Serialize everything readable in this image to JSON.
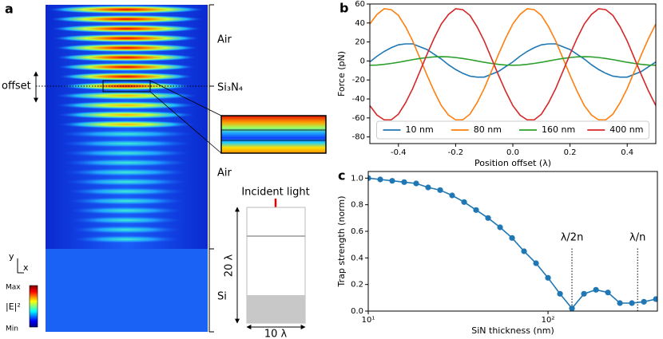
{
  "panel_a": {
    "label": "a",
    "layers": [
      "Air",
      "Si₃N₄",
      "Air",
      "Si"
    ],
    "offset_label": "offset",
    "axis_y": "y",
    "axis_x": "x",
    "colorbar": {
      "max": "Max",
      "label": "|E|²",
      "min": "Min"
    },
    "schematic": {
      "title": "Incident light",
      "height": "20 λ",
      "width": "10 λ"
    }
  },
  "chart_data": [
    {
      "type": "line",
      "panel_label": "b",
      "x": [
        -0.5,
        -0.475,
        -0.45,
        -0.425,
        -0.4,
        -0.375,
        -0.35,
        -0.325,
        -0.3,
        -0.275,
        -0.25,
        -0.225,
        -0.2,
        -0.175,
        -0.15,
        -0.125,
        -0.1,
        -0.075,
        -0.05,
        -0.025,
        0,
        0.025,
        0.05,
        0.075,
        0.1,
        0.125,
        0.15,
        0.175,
        0.2,
        0.225,
        0.25,
        0.275,
        0.3,
        0.325,
        0.35,
        0.375,
        0.4,
        0.425,
        0.45,
        0.475,
        0.5
      ],
      "series": [
        {
          "name": "10 nm",
          "color": "#1f77b4",
          "values": [
            -1,
            5,
            10,
            14,
            17,
            18,
            18,
            15,
            12,
            7,
            2,
            -4,
            -9,
            -13,
            -16,
            -17,
            -17,
            -14,
            -11,
            -6,
            -1,
            5,
            10,
            14,
            17,
            18,
            18,
            15,
            12,
            7,
            2,
            -4,
            -9,
            -13,
            -16,
            -17,
            -17,
            -14,
            -11,
            -6,
            -1
          ]
        },
        {
          "name": "80 nm",
          "color": "#ff7f0e",
          "values": [
            39,
            49,
            55,
            54,
            48,
            36,
            21,
            3,
            -15,
            -32,
            -47,
            -57,
            -62,
            -62,
            -56,
            -44,
            -29,
            -11,
            7,
            24,
            39,
            49,
            55,
            54,
            48,
            36,
            21,
            3,
            -15,
            -32,
            -47,
            -57,
            -62,
            -62,
            -56,
            -44,
            -29,
            -11,
            7,
            24,
            39
          ]
        },
        {
          "name": "160 nm",
          "color": "#2ca02c",
          "values": [
            -4.5,
            -4.3,
            -3.6,
            -2.6,
            -1.4,
            0,
            1.4,
            2.6,
            3.6,
            4.3,
            4.5,
            4.3,
            3.6,
            2.6,
            1.4,
            0,
            -1.4,
            -2.6,
            -3.6,
            -4.3,
            -4.5,
            -4.3,
            -3.6,
            -2.6,
            -1.4,
            0,
            1.4,
            2.6,
            3.6,
            4.3,
            4.5,
            4.3,
            3.6,
            2.6,
            1.4,
            0,
            -1.4,
            -2.6,
            -3.6,
            -4.3,
            -4.5
          ]
        },
        {
          "name": "400 nm",
          "color": "#d62728",
          "values": [
            -47,
            -57,
            -62,
            -62,
            -56,
            -44,
            -29,
            -11,
            7,
            24,
            39,
            49,
            55,
            54,
            48,
            36,
            21,
            3,
            -15,
            -32,
            -47,
            -57,
            -62,
            -62,
            -56,
            -44,
            -29,
            -11,
            7,
            24,
            39,
            49,
            55,
            54,
            48,
            36,
            21,
            3,
            -15,
            -32,
            -47
          ]
        }
      ],
      "xlabel": "Position offset (λ)",
      "ylabel": "Force (pN)",
      "xlim": [
        -0.5,
        0.5
      ],
      "ylim": [
        -87,
        60
      ],
      "xticks": [
        -0.4,
        -0.2,
        {
          "value": 0,
          "label": "0.0"
        },
        0.2,
        0.4
      ],
      "yticks": [
        -80,
        -60,
        -40,
        -20,
        0,
        20,
        40,
        60
      ],
      "legend": "lower center"
    },
    {
      "type": "line",
      "panel_label": "c",
      "xscale": "log",
      "markers": true,
      "x": [
        10,
        11.66,
        13.59,
        15.85,
        18.48,
        21.54,
        25.12,
        29.29,
        34.15,
        39.81,
        46.42,
        54.12,
        63.1,
        73.56,
        85.77,
        100,
        116.6,
        135.9,
        158.5,
        184.8,
        215.4,
        251.2,
        292.9,
        341.5,
        398.1
      ],
      "series": [
        {
          "color": "#1f77b4",
          "values": [
            1.0,
            0.99,
            0.98,
            0.97,
            0.96,
            0.93,
            0.91,
            0.87,
            0.82,
            0.76,
            0.7,
            0.63,
            0.55,
            0.45,
            0.36,
            0.25,
            0.13,
            0.02,
            0.13,
            0.16,
            0.14,
            0.06,
            0.06,
            0.07,
            0.09
          ]
        }
      ],
      "xlabel": "SiN thickness (nm)",
      "ylabel": "Trap strength (norm)",
      "xlim": [
        10,
        406
      ],
      "ylim": [
        0,
        1.05
      ],
      "xticks": [
        {
          "value": 10,
          "label": "10¹"
        },
        {
          "value": 100,
          "label": "10²"
        }
      ],
      "yticks": [
        {
          "value": 0,
          "label": "0.0"
        },
        0.2,
        0.4,
        0.6,
        0.8,
        {
          "value": 1,
          "label": "1.0"
        }
      ],
      "annotations": [
        {
          "text": "λ/2n",
          "x": 135.9
        },
        {
          "text": "λ/n",
          "x": 315
        }
      ]
    }
  ]
}
